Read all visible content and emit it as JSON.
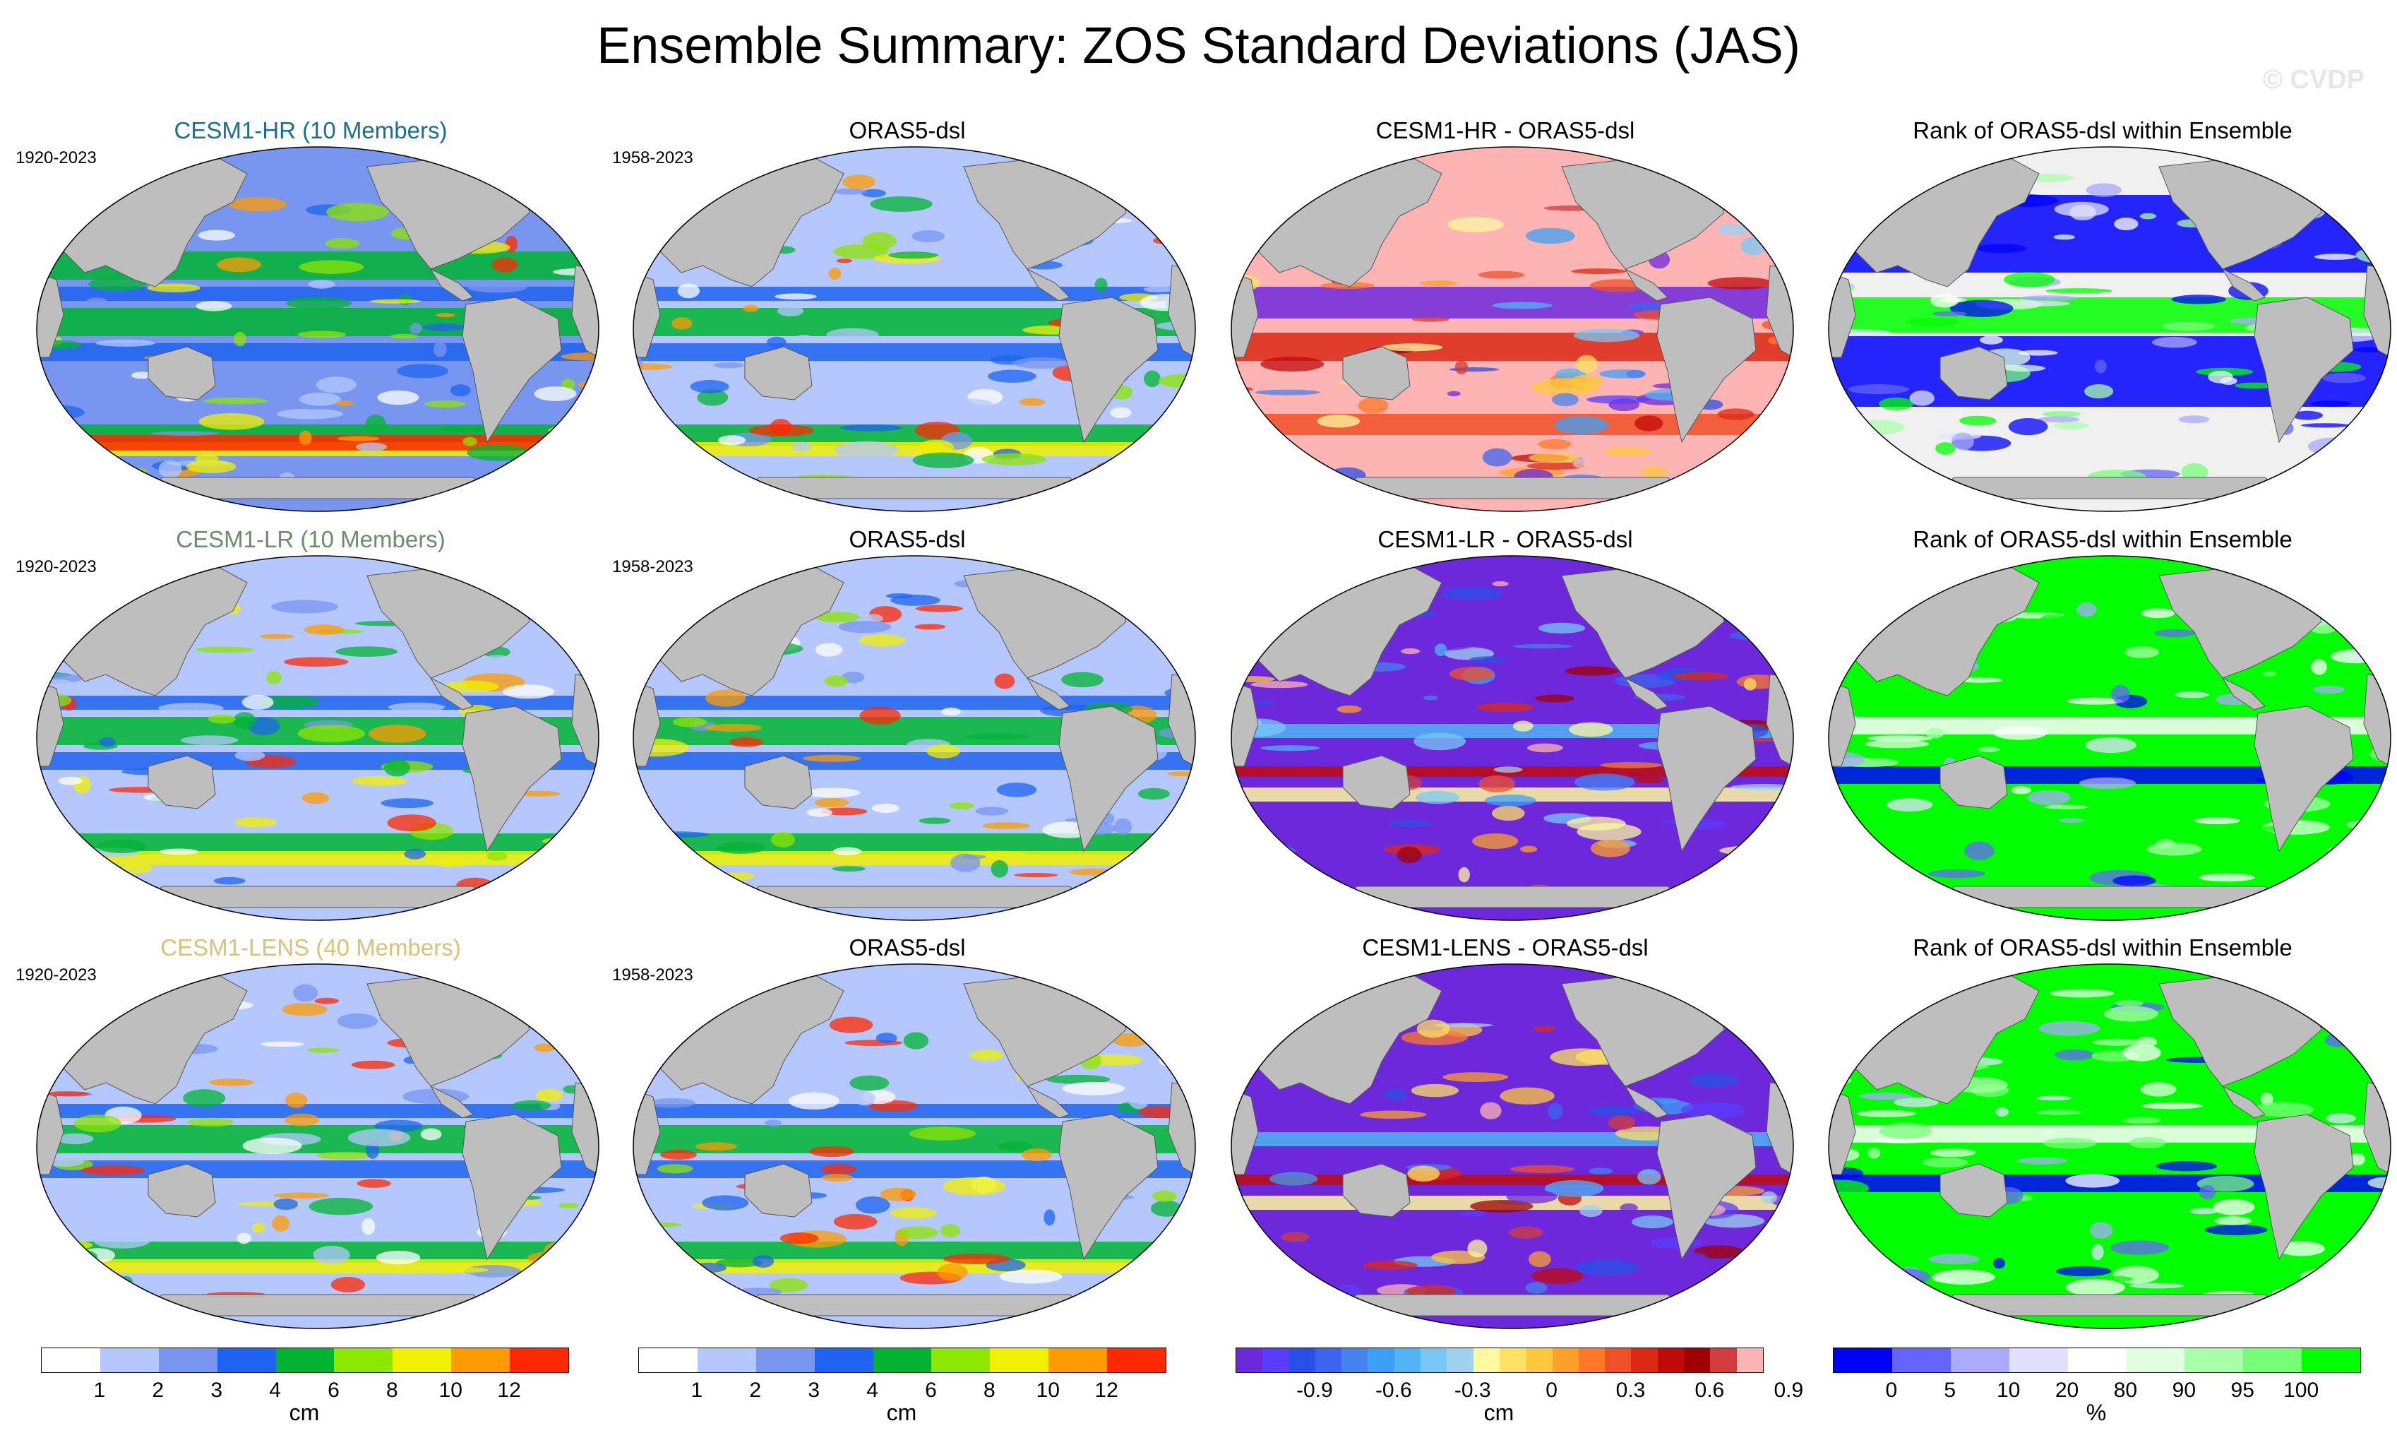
{
  "title": "Ensemble Summary: ZOS Standard Deviations (JAS)",
  "copyright": "© CVDP",
  "rows": [
    {
      "model": {
        "title": "CESM1-HR (10 Members)",
        "period": "1920-2023",
        "title_color": "#1a6e8e"
      },
      "obs": {
        "title": "ORAS5-dsl",
        "period": "1958-2023"
      },
      "diff": {
        "title": "CESM1-HR - ORAS5-dsl"
      },
      "rank": {
        "title": "Rank of ORAS5-dsl within Ensemble"
      }
    },
    {
      "model": {
        "title": "CESM1-LR (10 Members)",
        "period": "1920-2023",
        "title_color": "#6a8e6a"
      },
      "obs": {
        "title": "ORAS5-dsl",
        "period": "1958-2023"
      },
      "diff": {
        "title": "CESM1-LR - ORAS5-dsl"
      },
      "rank": {
        "title": "Rank of ORAS5-dsl within Ensemble"
      }
    },
    {
      "model": {
        "title": "CESM1-LENS (40 Members)",
        "period": "1920-2023",
        "title_color": "#d8c27a"
      },
      "obs": {
        "title": "ORAS5-dsl",
        "period": "1958-2023"
      },
      "diff": {
        "title": "CESM1-LENS - ORAS5-dsl"
      },
      "rank": {
        "title": "Rank of ORAS5-dsl within Ensemble"
      }
    }
  ],
  "colorbars": {
    "std": {
      "unit": "cm",
      "colors": [
        "#ffffff",
        "#b4c8ff",
        "#7896f0",
        "#1e64f0",
        "#00b432",
        "#8ce600",
        "#f0f000",
        "#ff9b00",
        "#ff2800"
      ],
      "ticks": [
        "1",
        "2",
        "3",
        "4",
        "6",
        "8",
        "10",
        "12"
      ]
    },
    "diff": {
      "unit": "cm",
      "colors": [
        "#6e28dc",
        "#5a3cff",
        "#2850e6",
        "#3c64f0",
        "#4682f0",
        "#3ca0f5",
        "#50b4f5",
        "#78c8f5",
        "#a0d2f0",
        "#fff8a0",
        "#ffe164",
        "#ffc83c",
        "#ffa028",
        "#ff7828",
        "#f05028",
        "#dc2814",
        "#c00a0a",
        "#a00000",
        "#d23c3c",
        "#ffb4b4"
      ],
      "ticks": [
        "-0.9",
        "-0.6",
        "-0.3",
        "0",
        "0.3",
        "0.6",
        "0.9"
      ]
    },
    "rank": {
      "unit": "%",
      "colors": [
        "#0000ff",
        "#6464ff",
        "#aaaaff",
        "#e1e1ff",
        "#ffffff",
        "#e1ffe1",
        "#aaffaa",
        "#78ff78",
        "#00ff00"
      ],
      "ticks": [
        "0",
        "5",
        "10",
        "20",
        "80",
        "90",
        "95",
        "100"
      ]
    }
  }
}
